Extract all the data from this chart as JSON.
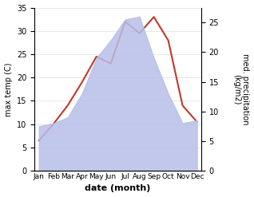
{
  "months": [
    "Jan",
    "Feb",
    "Mar",
    "Apr",
    "May",
    "Jun",
    "Jul",
    "Aug",
    "Sep",
    "Oct",
    "Nov",
    "Dec"
  ],
  "temperature": [
    6.5,
    10.0,
    14.0,
    19.0,
    24.5,
    23.0,
    32.0,
    29.5,
    33.0,
    28.0,
    14.0,
    10.5
  ],
  "precipitation": [
    7.5,
    8.0,
    9.0,
    13.0,
    19.0,
    22.0,
    25.5,
    26.0,
    19.0,
    13.0,
    8.0,
    8.5
  ],
  "temp_color": "#c0392b",
  "precip_fill_color": "#b8bfe8",
  "xlabel": "date (month)",
  "ylabel_left": "max temp (C)",
  "ylabel_right": "med. precipitation\n(kg/m2)",
  "ylim_left": [
    0,
    35
  ],
  "ylim_right": [
    0,
    27.5
  ],
  "yticks_left": [
    0,
    5,
    10,
    15,
    20,
    25,
    30,
    35
  ],
  "yticks_right": [
    0,
    5,
    10,
    15,
    20,
    25
  ],
  "background_color": "#ffffff",
  "temp_linewidth": 1.5,
  "xlabel_fontsize": 8,
  "ylabel_fontsize": 7,
  "tick_fontsize": 7,
  "month_fontsize": 6.5
}
